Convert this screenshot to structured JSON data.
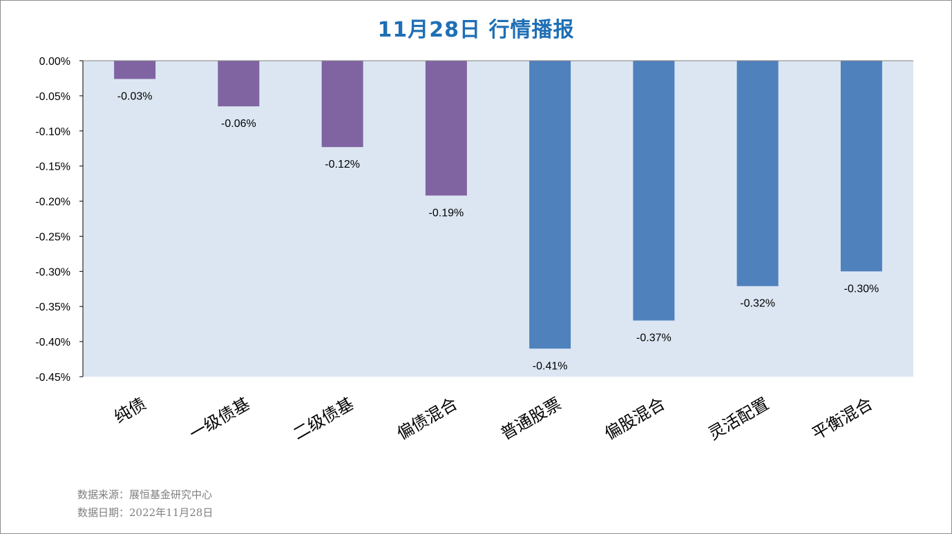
{
  "title": "11月28日  行情播报",
  "source_line": "数据来源：展恒基金研究中心",
  "date_line": "数据日期：2022年11月28日",
  "colors": {
    "plot_bg": "#dce6f2",
    "bond": "#8064a2",
    "equity": "#4f81bd",
    "axis": "#000000"
  },
  "chart_data": {
    "type": "bar",
    "title": "11月28日  行情播报",
    "xlabel": "",
    "ylabel": "",
    "categories": [
      "纯债",
      "一级债基",
      "二级债基",
      "偏债混合",
      "普通股票",
      "偏股混合",
      "灵活配置",
      "平衡混合"
    ],
    "values": [
      -0.03,
      -0.06,
      -0.12,
      -0.19,
      -0.41,
      -0.37,
      -0.32,
      -0.3
    ],
    "plot_values": [
      -0.026,
      -0.065,
      -0.123,
      -0.192,
      -0.41,
      -0.37,
      -0.321,
      -0.3
    ],
    "data_labels": [
      "-0.03%",
      "-0.06%",
      "-0.12%",
      "-0.19%",
      "-0.41%",
      "-0.37%",
      "-0.32%",
      "-0.30%"
    ],
    "bar_colors": [
      "#8064a2",
      "#8064a2",
      "#8064a2",
      "#8064a2",
      "#4f81bd",
      "#4f81bd",
      "#4f81bd",
      "#4f81bd"
    ],
    "ylim": [
      -0.45,
      0
    ],
    "yticks": [
      0,
      -0.05,
      -0.1,
      -0.15,
      -0.2,
      -0.25,
      -0.3,
      -0.35,
      -0.4,
      -0.45
    ],
    "ytick_labels": [
      "0.00%",
      "-0.05%",
      "-0.10%",
      "-0.15%",
      "-0.20%",
      "-0.25%",
      "-0.30%",
      "-0.35%",
      "-0.40%",
      "-0.45%"
    ],
    "grid": false,
    "legend": "none"
  }
}
